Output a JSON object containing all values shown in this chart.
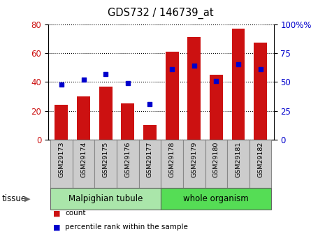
{
  "title": "GDS732 / 146739_at",
  "categories": [
    "GSM29173",
    "GSM29174",
    "GSM29175",
    "GSM29176",
    "GSM29177",
    "GSM29178",
    "GSM29179",
    "GSM29180",
    "GSM29181",
    "GSM29182"
  ],
  "counts": [
    24,
    30,
    37,
    25,
    10,
    61,
    71,
    45,
    77,
    67
  ],
  "percentiles": [
    48,
    52,
    57,
    49,
    31,
    61,
    64,
    51,
    65,
    61
  ],
  "left_ylim": [
    0,
    80
  ],
  "right_ylim": [
    0,
    100
  ],
  "left_yticks": [
    0,
    20,
    40,
    60,
    80
  ],
  "right_yticks": [
    0,
    25,
    50,
    75,
    100
  ],
  "bar_color": "#cc1111",
  "dot_color": "#0000cc",
  "tissue_groups": [
    {
      "label": "Malpighian tubule",
      "start": 0,
      "end": 5,
      "color": "#aae6aa"
    },
    {
      "label": "whole organism",
      "start": 5,
      "end": 10,
      "color": "#55dd55"
    }
  ],
  "tissue_label": "tissue",
  "legend_items": [
    {
      "label": "count",
      "color": "#cc1111"
    },
    {
      "label": "percentile rank within the sample",
      "color": "#0000cc"
    }
  ],
  "label_box_color": "#cccccc",
  "label_box_edge": "#888888",
  "grid_color": "black",
  "plot_bg": "#ffffff"
}
